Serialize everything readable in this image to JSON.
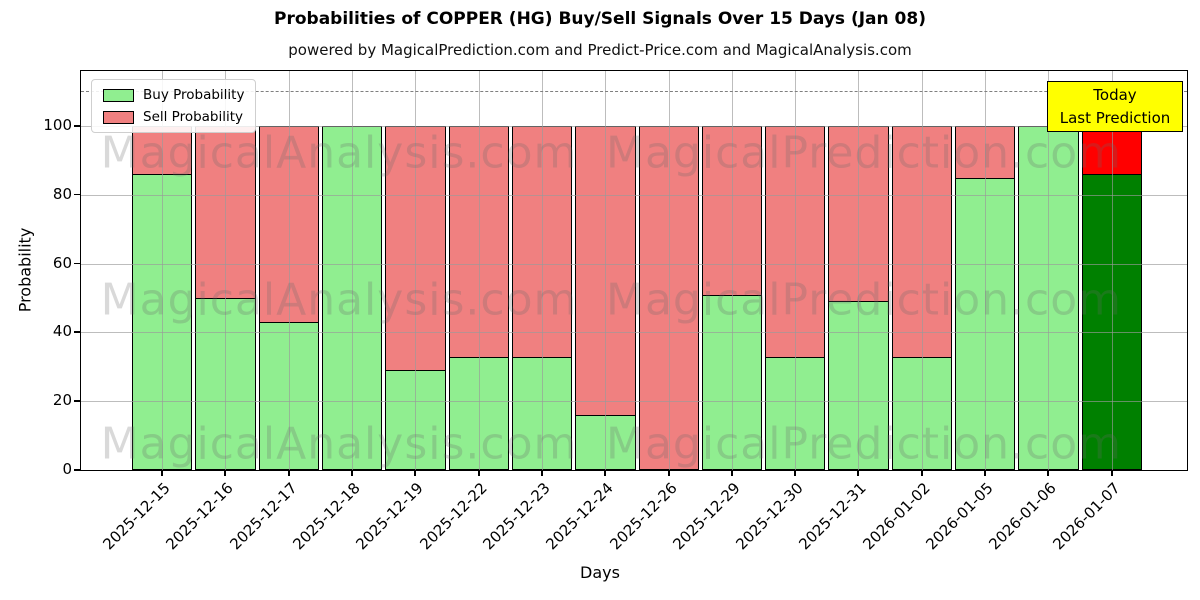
{
  "title": "Probabilities of COPPER (HG) Buy/Sell Signals Over 15 Days (Jan 08)",
  "subtitle": "powered by MagicalPrediction.com and Predict-Price.com and MagicalAnalysis.com",
  "axes": {
    "xlabel": "Days",
    "ylabel": "Probability",
    "yticks": [
      0,
      20,
      40,
      60,
      80,
      100
    ],
    "ymax": 116,
    "dashed_line_y": 110,
    "grid": "on"
  },
  "legend": {
    "position": "upper-left",
    "items": [
      {
        "label": "Buy Probability",
        "color": "#90EE90"
      },
      {
        "label": "Sell Probability",
        "color": "#F08080"
      }
    ]
  },
  "annotation": {
    "line1": "Today",
    "line2": "Last Prediction",
    "bg": "#FFFF00"
  },
  "watermarks": {
    "left": "MagicalAnalysis.com",
    "right": "MagicalPrediction.com"
  },
  "colors": {
    "buy": "#90EE90",
    "sell": "#F08080",
    "today_buy": "#008000",
    "today_sell": "#FF0000",
    "bar_edge": "#000000",
    "annotation_bg": "#FFFF00"
  },
  "chart_data": {
    "type": "bar",
    "stacked": true,
    "title": "Probabilities of COPPER (HG) Buy/Sell Signals Over 15 Days (Jan 08)",
    "xlabel": "Days",
    "ylabel": "Probability",
    "ylim": [
      0,
      116
    ],
    "gridlines_above_bars": true,
    "categories": [
      "2025-12-15",
      "2025-12-16",
      "2025-12-17",
      "2025-12-18",
      "2025-12-19",
      "2025-12-22",
      "2025-12-23",
      "2025-12-24",
      "2025-12-26",
      "2025-12-29",
      "2025-12-30",
      "2025-12-31",
      "2026-01-02",
      "2026-01-05",
      "2026-01-06",
      "2026-01-07"
    ],
    "series": [
      {
        "name": "Buy Probability",
        "color": "#90EE90",
        "values": [
          86,
          50,
          43,
          100,
          29,
          33,
          33,
          16,
          0,
          51,
          33,
          49,
          33,
          85,
          100,
          86
        ]
      },
      {
        "name": "Sell Probability",
        "color": "#F08080",
        "values": [
          14,
          50,
          57,
          0,
          71,
          67,
          67,
          84,
          100,
          49,
          67,
          51,
          67,
          15,
          0,
          14
        ]
      }
    ],
    "today_bar": {
      "category": "2026-01-07",
      "buy_color": "#008000",
      "sell_color": "#FF0000"
    }
  }
}
